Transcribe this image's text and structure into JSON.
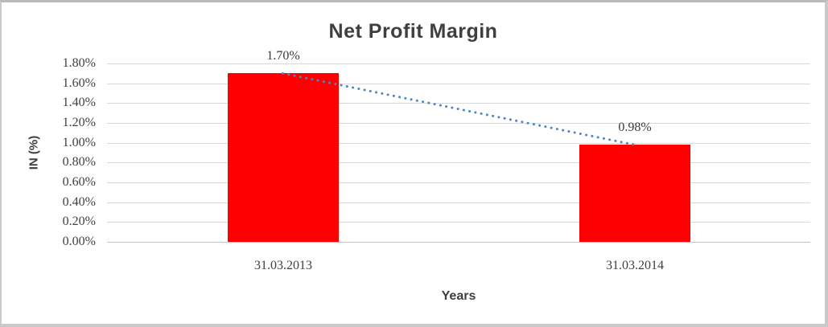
{
  "chart": {
    "title": "Net Profit Margin",
    "y_axis_title": "IN (%)",
    "x_axis_title": "Years"
  },
  "chart_data": {
    "type": "bar",
    "title": "Net Profit Margin",
    "xlabel": "Years",
    "ylabel": "IN (%)",
    "categories": [
      "31.03.2013",
      "31.03.2014"
    ],
    "series": [
      {
        "name": "Net Profit Margin",
        "values": [
          1.7,
          0.98
        ]
      }
    ],
    "data_labels": [
      "1.70%",
      "0.98%"
    ],
    "ylim": [
      0,
      1.8
    ],
    "ytick_step": 0.2,
    "ytick_labels": [
      "0.00%",
      "0.20%",
      "0.40%",
      "0.60%",
      "0.80%",
      "1.00%",
      "1.20%",
      "1.40%",
      "1.60%",
      "1.80%"
    ],
    "grid": true,
    "legend": "none",
    "trendline": {
      "type": "linear",
      "style": "dotted",
      "color": "#4a86c8",
      "points": [
        1.7,
        0.98
      ]
    },
    "colors": {
      "bar": "#ff0000",
      "grid": "#d9d9d9",
      "baseline": "#c3c3c3",
      "text": "#404040",
      "border": "#c9c9c9"
    }
  }
}
